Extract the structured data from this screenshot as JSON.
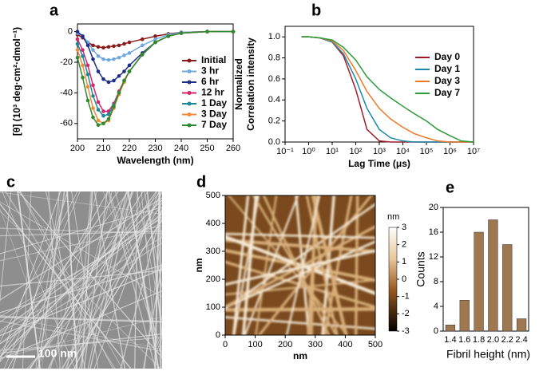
{
  "chart_data": [
    {
      "type": "line",
      "panel": "a",
      "xlabel": "Wavelength (nm)",
      "ylabel": "[θ] (10³ deg·cm²·dmol⁻¹)",
      "x": [
        200,
        202,
        204,
        206,
        208,
        210,
        212,
        214,
        216,
        218,
        220,
        225,
        230,
        235,
        240,
        250,
        260
      ],
      "xlim": [
        200,
        260
      ],
      "xticks": [
        200,
        210,
        220,
        230,
        240,
        250,
        260
      ],
      "ylim": [
        -70,
        5
      ],
      "yticks": [
        0,
        -20,
        -40,
        -60
      ],
      "series": [
        {
          "name": "Initial",
          "color": "#8b1a1a",
          "values": [
            -2,
            -4,
            -7,
            -9,
            -10,
            -10.5,
            -10,
            -9.5,
            -9,
            -8,
            -7,
            -5,
            -3,
            -1.5,
            -0.5,
            0,
            0
          ]
        },
        {
          "name": "3 hr",
          "color": "#6fa8dc",
          "values": [
            -1,
            -3,
            -7,
            -12,
            -16,
            -18,
            -18.5,
            -18,
            -17,
            -15.5,
            -14,
            -9,
            -5,
            -2,
            -0.5,
            0,
            0
          ]
        },
        {
          "name": "6 hr",
          "color": "#1f2d8a",
          "values": [
            0,
            -3,
            -9,
            -18,
            -26,
            -31,
            -33,
            -32,
            -29,
            -26,
            -22,
            -14,
            -7,
            -3,
            -1,
            0,
            0
          ]
        },
        {
          "name": "12 hr",
          "color": "#d6246e",
          "values": [
            -5,
            -12,
            -22,
            -35,
            -46,
            -52,
            -52,
            -47,
            -39,
            -32,
            -26,
            -15,
            -7,
            -3,
            -1,
            0,
            0
          ]
        },
        {
          "name": "1 Day",
          "color": "#1a8a9a",
          "values": [
            -8,
            -16,
            -28,
            -42,
            -51,
            -55,
            -54,
            -48,
            -40,
            -32,
            -26,
            -15,
            -7,
            -3,
            -1,
            0,
            0
          ]
        },
        {
          "name": "3 Day",
          "color": "#f08a3c",
          "values": [
            -12,
            -22,
            -36,
            -50,
            -58,
            -60,
            -58,
            -50,
            -41,
            -33,
            -26,
            -15,
            -7,
            -3,
            -1,
            0,
            0
          ]
        },
        {
          "name": "7 Day",
          "color": "#2e8b2e",
          "values": [
            -17,
            -30,
            -45,
            -56,
            -61,
            -60,
            -57,
            -49,
            -40,
            -32,
            -26,
            -15,
            -7,
            -3,
            -1,
            0,
            0
          ]
        }
      ]
    },
    {
      "type": "line",
      "panel": "b",
      "xlabel": "Lag Time (μs)",
      "ylabel": [
        "Normalized",
        "Correlation intensity"
      ],
      "log_x": true,
      "x": [
        0.5,
        1,
        3,
        10,
        30,
        100,
        300,
        1000,
        3000,
        10000,
        30000,
        100000,
        300000,
        1000000,
        3000000,
        10000000
      ],
      "xlim": [
        0.1,
        10000000
      ],
      "xticks": [
        {
          "value": 0.1,
          "label": "10⁻¹"
        },
        {
          "value": 1,
          "label": "10⁰"
        },
        {
          "value": 10,
          "label": "10¹"
        },
        {
          "value": 100,
          "label": "10²"
        },
        {
          "value": 1000,
          "label": "10³"
        },
        {
          "value": 10000,
          "label": "10⁴"
        },
        {
          "value": 100000,
          "label": "10⁵"
        },
        {
          "value": 1000000,
          "label": "10⁶"
        },
        {
          "value": 10000000,
          "label": "10⁷"
        }
      ],
      "ylim": [
        0,
        1.1
      ],
      "yticks": [
        {
          "value": 0,
          "label": "0.0"
        },
        {
          "value": 0.2,
          "label": "0.2"
        },
        {
          "value": 0.4,
          "label": "0.4"
        },
        {
          "value": 0.6,
          "label": "0.6"
        },
        {
          "value": 0.8,
          "label": "0.8"
        },
        {
          "value": 1,
          "label": "1.0"
        }
      ],
      "series": [
        {
          "name": "Day 0",
          "color": "#a01c2c",
          "values": [
            1,
            1,
            0.99,
            0.95,
            0.82,
            0.5,
            0.12,
            0.01,
            0,
            0,
            0,
            0,
            0,
            0,
            0,
            0
          ]
        },
        {
          "name": "Day 1",
          "color": "#1b8aa8",
          "values": [
            1,
            1,
            0.99,
            0.95,
            0.84,
            0.6,
            0.32,
            0.12,
            0.04,
            0.01,
            0,
            0,
            0,
            0,
            0,
            0
          ]
        },
        {
          "name": "Day 3",
          "color": "#f07a28",
          "values": [
            1,
            1,
            0.99,
            0.96,
            0.87,
            0.68,
            0.48,
            0.32,
            0.22,
            0.14,
            0.08,
            0.04,
            0.01,
            0,
            0,
            0
          ]
        },
        {
          "name": "Day 7",
          "color": "#2a9a3a",
          "values": [
            1,
            1,
            0.99,
            0.97,
            0.9,
            0.78,
            0.62,
            0.5,
            0.42,
            0.34,
            0.27,
            0.2,
            0.12,
            0.06,
            0.01,
            0
          ]
        }
      ]
    },
    {
      "type": "image",
      "panel": "c",
      "scale_bar": "100 nm"
    },
    {
      "type": "heatmap",
      "panel": "d",
      "xlabel": "nm",
      "ylabel": "nm",
      "xlim": [
        0,
        500
      ],
      "xticks": [
        0,
        100,
        200,
        300,
        400,
        500
      ],
      "ylim": [
        0,
        500
      ],
      "yticks": [
        0,
        100,
        200,
        300,
        400,
        500
      ],
      "colorbar": {
        "label": "nm",
        "lim": [
          -3,
          3
        ],
        "ticks": [
          3,
          2,
          1,
          0,
          -1,
          -2,
          -3
        ]
      }
    },
    {
      "type": "bar",
      "panel": "e",
      "xlabel": "Fibril height (nm)",
      "ylabel": "Counts",
      "categories": [
        "1.4",
        "1.6",
        "1.8",
        "2.0",
        "2.2",
        "2.4"
      ],
      "values": [
        1,
        5,
        16,
        18,
        14,
        2
      ],
      "color": "#a07850",
      "ylim": [
        0,
        20
      ],
      "yticks": [
        0,
        4,
        8,
        12,
        16,
        20
      ]
    }
  ]
}
